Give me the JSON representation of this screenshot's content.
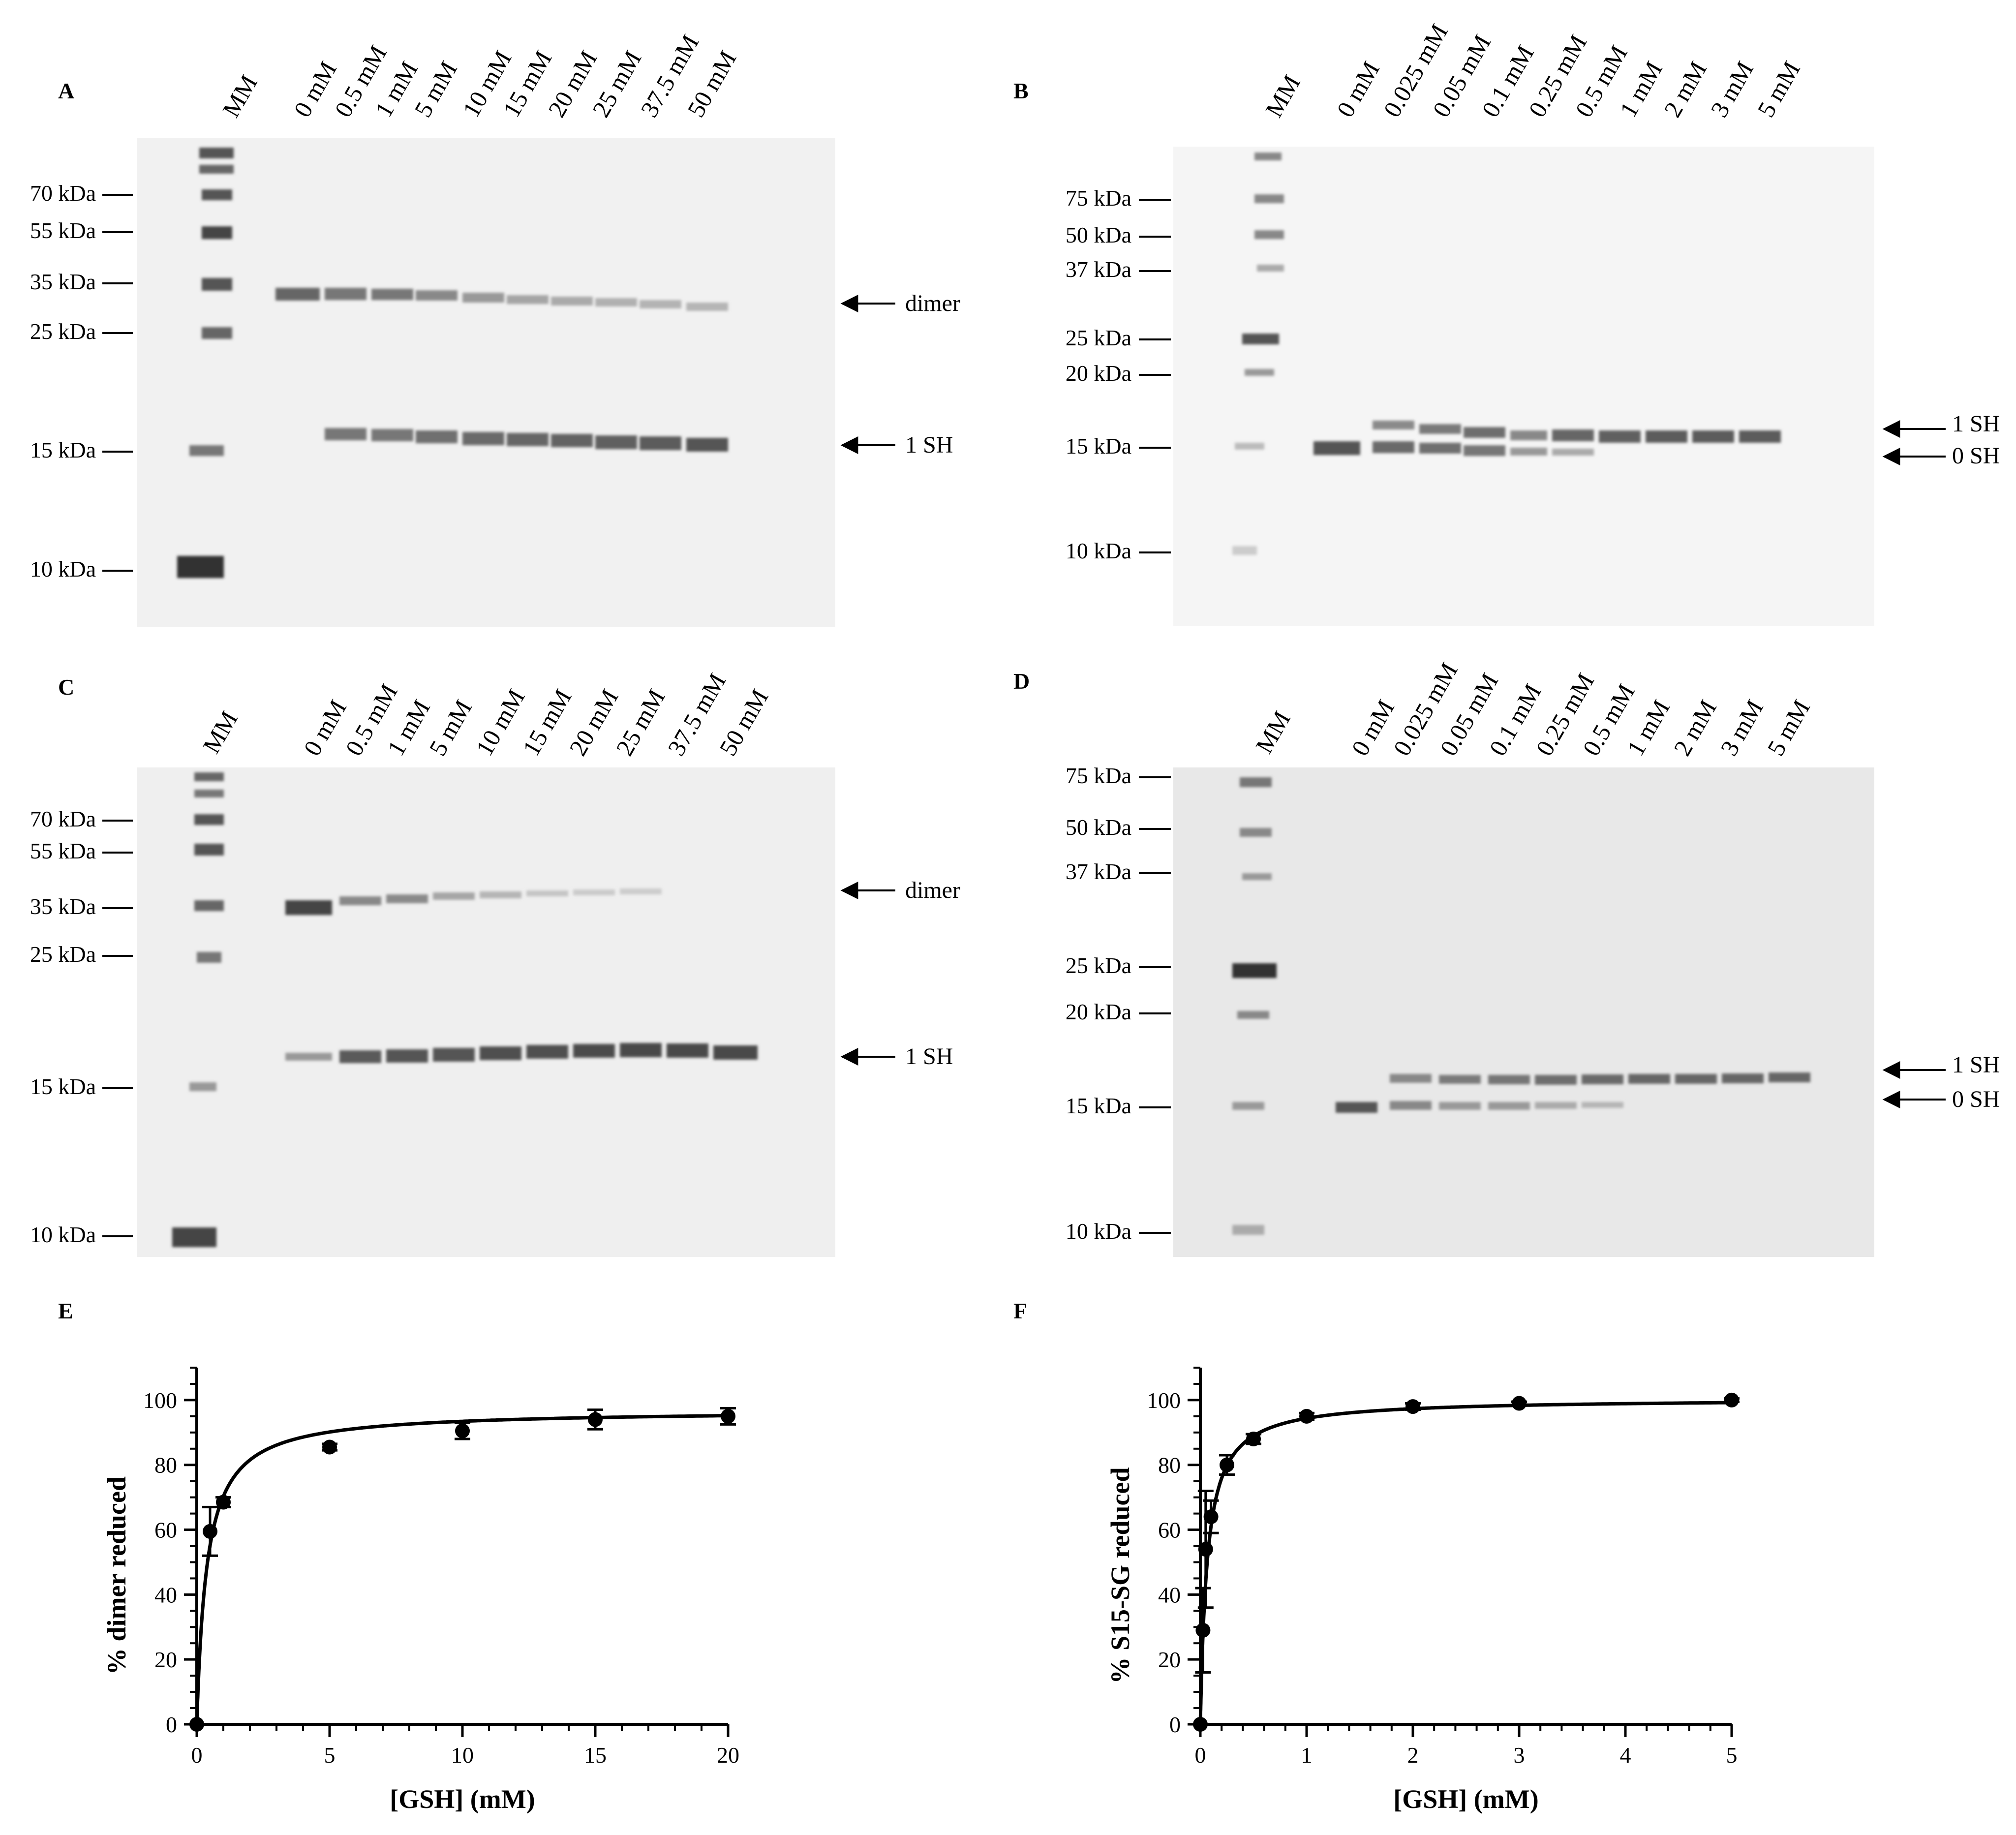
{
  "gels": [
    {
      "letter": "A",
      "marker_label": "MM",
      "lanes": [
        "0 mM",
        "0.5 mM",
        "1 mM",
        "5 mM",
        "10 mM",
        "15 mM",
        "20 mM",
        "25 mM",
        "37.5 mM",
        "50 mM"
      ],
      "mw_markers": [
        "70 kDa",
        "55 kDa",
        "35 kDa",
        "25 kDa",
        "15 kDa",
        "10 kDa"
      ],
      "band_labels": [
        "dimer",
        "1 SH"
      ]
    },
    {
      "letter": "B",
      "marker_label": "MM",
      "lanes": [
        "0 mM",
        "0.025 mM",
        "0.05 mM",
        "0.1 mM",
        "0.25 mM",
        "0.5 mM",
        "1 mM",
        "2 mM",
        "3 mM",
        "5 mM"
      ],
      "mw_markers": [
        "75 kDa",
        "50 kDa",
        "37 kDa",
        "25 kDa",
        "20 kDa",
        "15 kDa",
        "10 kDa"
      ],
      "band_labels": [
        "1 SH",
        "0 SH"
      ]
    },
    {
      "letter": "C",
      "marker_label": "MM",
      "lanes": [
        "0 mM",
        "0.5 mM",
        "1 mM",
        "5 mM",
        "10 mM",
        "15 mM",
        "20 mM",
        "25 mM",
        "37.5 mM",
        "50 mM"
      ],
      "mw_markers": [
        "70 kDa",
        "55 kDa",
        "35 kDa",
        "25 kDa",
        "15 kDa",
        "10 kDa"
      ],
      "band_labels": [
        "dimer",
        "1 SH"
      ]
    },
    {
      "letter": "D",
      "marker_label": "MM",
      "lanes": [
        "0 mM",
        "0.025 mM",
        "0.05 mM",
        "0.1 mM",
        "0.25 mM",
        "0.5 mM",
        "1 mM",
        "2 mM",
        "3 mM",
        "5 mM"
      ],
      "mw_markers": [
        "75 kDa",
        "50 kDa",
        "37 kDa",
        "25 kDa",
        "20 kDa",
        "15 kDa",
        "10 kDa"
      ],
      "band_labels": [
        "1 SH",
        "0 SH"
      ]
    }
  ],
  "chart_data": [
    {
      "panel": "E",
      "type": "scatter",
      "title": "",
      "xlabel": "[GSH] (mM)",
      "ylabel": "% dimer reduced",
      "xlim": [
        0,
        20
      ],
      "ylim": [
        0,
        110
      ],
      "xticks": [
        0,
        5,
        10,
        15,
        20
      ],
      "yticks": [
        0,
        20,
        40,
        60,
        80,
        100
      ],
      "points": [
        {
          "x": 0,
          "y": 0,
          "err": 0
        },
        {
          "x": 0.5,
          "y": 59.5,
          "err": 7.5
        },
        {
          "x": 1,
          "y": 68.5,
          "err": 1.5
        },
        {
          "x": 5,
          "y": 85.5,
          "err": 1
        },
        {
          "x": 10,
          "y": 90.5,
          "err": 2.5
        },
        {
          "x": 15,
          "y": 94,
          "err": 3
        },
        {
          "x": 20,
          "y": 95,
          "err": 2.5
        }
      ],
      "fit": {
        "model": "hyperbola",
        "ymax": 97,
        "k": 0.38
      }
    },
    {
      "panel": "F",
      "type": "scatter",
      "title": "",
      "xlabel": "[GSH] (mM)",
      "ylabel": "% S15-SG reduced",
      "xlim": [
        0,
        5
      ],
      "ylim": [
        0,
        110
      ],
      "xticks": [
        0,
        1,
        2,
        3,
        4,
        5
      ],
      "yticks": [
        0,
        20,
        40,
        60,
        80,
        100
      ],
      "points": [
        {
          "x": 0,
          "y": 0,
          "err": 0
        },
        {
          "x": 0.025,
          "y": 29,
          "err": 13
        },
        {
          "x": 0.05,
          "y": 54,
          "err": 18
        },
        {
          "x": 0.1,
          "y": 64,
          "err": 5
        },
        {
          "x": 0.25,
          "y": 80,
          "err": 3
        },
        {
          "x": 0.5,
          "y": 88,
          "err": 1.5
        },
        {
          "x": 1,
          "y": 95,
          "err": 1
        },
        {
          "x": 2,
          "y": 98,
          "err": 1
        },
        {
          "x": 3,
          "y": 99,
          "err": 0.5
        },
        {
          "x": 5,
          "y": 100,
          "err": 0.5
        }
      ],
      "fit": {
        "model": "hyperbola",
        "ymax": 100.5,
        "k": 0.065
      }
    }
  ]
}
